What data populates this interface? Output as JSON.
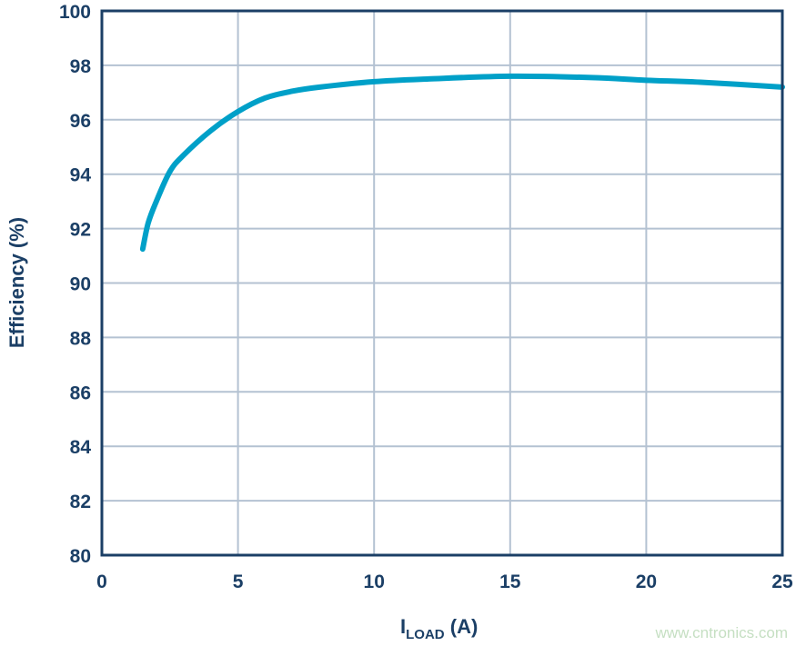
{
  "chart_data": {
    "type": "line",
    "title": "",
    "xlabel": "I",
    "xlabel_subscript": "LOAD",
    "xlabel_unit": " (A)",
    "ylabel": "Efficiency (%)",
    "xlim": [
      0,
      25
    ],
    "ylim": [
      80,
      100
    ],
    "xticks": [
      "0",
      "5",
      "10",
      "15",
      "20",
      "25"
    ],
    "yticks": [
      "80",
      "82",
      "84",
      "86",
      "88",
      "90",
      "92",
      "94",
      "96",
      "98",
      "100"
    ],
    "grid": true,
    "series": [
      {
        "color": "#00a0c8",
        "x": [
          1.5,
          1.7,
          2.0,
          2.5,
          3.0,
          4.0,
          5.0,
          6.0,
          7.0,
          8.0,
          10.0,
          12.0,
          15.0,
          18.0,
          20.0,
          22.0,
          25.0
        ],
        "y": [
          91.25,
          92.2,
          93.0,
          94.1,
          94.7,
          95.6,
          96.3,
          96.8,
          97.05,
          97.2,
          97.4,
          97.5,
          97.6,
          97.55,
          97.45,
          97.38,
          97.2
        ]
      }
    ]
  },
  "watermark": "www.cntronics.com",
  "colors": {
    "axis": "#1b3f66",
    "grid": "#b4c2d2",
    "line": "#00a0c8"
  }
}
